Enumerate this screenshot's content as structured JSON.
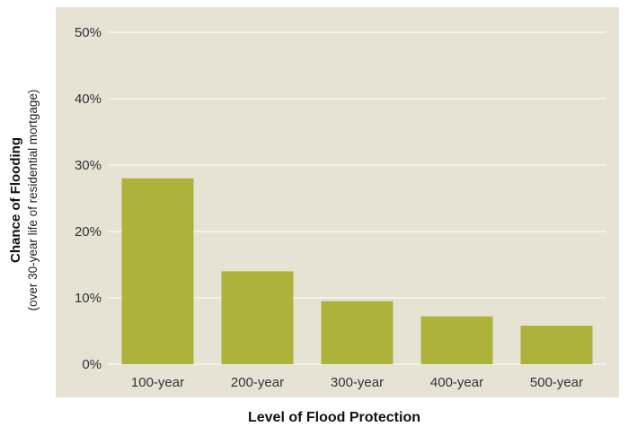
{
  "chart_data": {
    "type": "bar",
    "title": "",
    "xlabel": "Level of Flood Protection",
    "ylabel": "Chance of Flooding",
    "ylabel_sub": "(over 30-year life of residential mortgage)",
    "categories": [
      "100-year",
      "200-year",
      "300-year",
      "400-year",
      "500-year"
    ],
    "values": [
      28,
      14,
      9.5,
      7.2,
      5.8
    ],
    "ylim": [
      0,
      50
    ],
    "yticks": [
      0,
      10,
      20,
      30,
      40,
      50
    ],
    "ytick_labels": [
      "0%",
      "10%",
      "20%",
      "30%",
      "40%",
      "50%"
    ],
    "grid": true,
    "legend": "none",
    "colors": {
      "bar": "#adb23a",
      "background": "#e6e3d5",
      "grid": "#ffffff"
    }
  }
}
